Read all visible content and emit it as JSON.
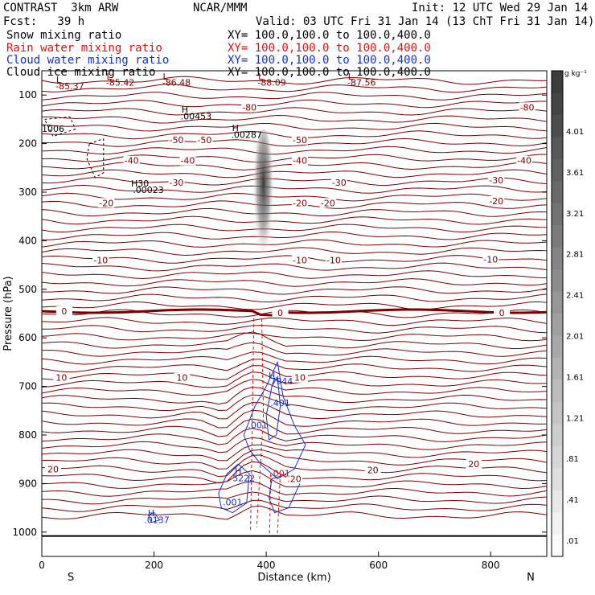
{
  "header": {
    "model": "CONTRAST  3km ARW",
    "center": "NCAR/MMM",
    "init": "Init: 12 UTC Wed 29 Jan 14",
    "fcst": "Fcst:   39 h",
    "valid": "Valid: 03 UTC Fri 31 Jan 14 (13 ChT Fri 31 Jan 14)",
    "fields": [
      {
        "name": "Snow mixing ratio",
        "xy": "XY= 100.0,100.0 to 100.0,400.0",
        "color": "#000000"
      },
      {
        "name": "Rain water mixing ratio",
        "xy": "XY= 100.0,100.0 to 100.0,400.0",
        "color": "#e01010"
      },
      {
        "name": "Cloud water mixing ratio",
        "xy": "XY= 100.0,100.0 to 100.0,400.0",
        "color": "#1030d0"
      },
      {
        "name": "Cloud ice mixing ratio",
        "xy": "XY= 100.0,100.0 to 100.0,400.0",
        "color": "#000000"
      }
    ]
  },
  "chart_data": {
    "type": "cross-section",
    "xlabel": "Distance (km)",
    "ylabel": "Pressure (hPa)",
    "xlim": [
      0,
      900
    ],
    "ylim": [
      1050,
      50
    ],
    "xticks": [
      "0",
      "200",
      "400",
      "600",
      "800"
    ],
    "xtick_values": [
      0,
      200,
      400,
      600,
      800
    ],
    "yticks": [
      "100",
      "200",
      "300",
      "400",
      "500",
      "600",
      "700",
      "800",
      "900",
      "1000"
    ],
    "ytick_values": [
      100,
      200,
      300,
      400,
      500,
      600,
      700,
      800,
      900,
      1000
    ],
    "left_end_label": "S",
    "right_end_label": "N",
    "colorbar": {
      "unit": "g kg⁻¹",
      "labels": [
        "4.01",
        "3.61",
        "3.21",
        "2.81",
        "2.41",
        "2.01",
        "1.61",
        "1.21",
        ".81",
        ".41",
        ".01"
      ],
      "values": [
        4.01,
        3.61,
        3.21,
        2.81,
        2.41,
        2.01,
        1.61,
        1.21,
        0.81,
        0.41,
        0.01
      ]
    },
    "temperature_contours": {
      "color": "#7a0000",
      "levels": [
        -80,
        -70,
        -60,
        -50,
        -40,
        -30,
        -20,
        -10,
        0,
        10,
        20
      ],
      "zero_line_pressure": 545
    },
    "temperature_labels": [
      {
        "text": "-80",
        "x": 370,
        "p": 125
      },
      {
        "text": "-80",
        "x": 865,
        "p": 125
      },
      {
        "text": "-50",
        "x": 240,
        "p": 192
      },
      {
        "text": "-50",
        "x": 290,
        "p": 192
      },
      {
        "text": "-50",
        "x": 460,
        "p": 192
      },
      {
        "text": "-40",
        "x": 160,
        "p": 235
      },
      {
        "text": "-40",
        "x": 260,
        "p": 235
      },
      {
        "text": "-40",
        "x": 460,
        "p": 235
      },
      {
        "text": "-40",
        "x": 860,
        "p": 235
      },
      {
        "text": "-30",
        "x": 240,
        "p": 280
      },
      {
        "text": "-30",
        "x": 530,
        "p": 280
      },
      {
        "text": "-30",
        "x": 810,
        "p": 275
      },
      {
        "text": "-20",
        "x": 115,
        "p": 322
      },
      {
        "text": "-20",
        "x": 460,
        "p": 322
      },
      {
        "text": "-20",
        "x": 510,
        "p": 322
      },
      {
        "text": "-20",
        "x": 810,
        "p": 318
      },
      {
        "text": "-10",
        "x": 105,
        "p": 440
      },
      {
        "text": "-10",
        "x": 460,
        "p": 440
      },
      {
        "text": "-10",
        "x": 520,
        "p": 440
      },
      {
        "text": "-10",
        "x": 800,
        "p": 438
      },
      {
        "text": "0",
        "x": 40,
        "p": 545
      },
      {
        "text": "0",
        "x": 425,
        "p": 548
      },
      {
        "text": "0",
        "x": 820,
        "p": 548
      },
      {
        "text": "10",
        "x": 35,
        "p": 682
      },
      {
        "text": "10",
        "x": 250,
        "p": 682
      },
      {
        "text": "10",
        "x": 460,
        "p": 682
      },
      {
        "text": "20",
        "x": 20,
        "p": 870
      },
      {
        "text": "20",
        "x": 590,
        "p": 872
      },
      {
        "text": "20",
        "x": 770,
        "p": 860
      },
      {
        "text": ".20",
        "x": 450,
        "p": 890
      }
    ],
    "extrema_labels": [
      {
        "text": "L",
        "x": 30,
        "p": 75,
        "color": "#7a0000"
      },
      {
        "text": "-85.37",
        "x": 50,
        "p": 88,
        "color": "#7a0000"
      },
      {
        "text": "L",
        "x": 120,
        "p": 68,
        "color": "#7a0000"
      },
      {
        "text": "-85.42",
        "x": 140,
        "p": 81,
        "color": "#7a0000"
      },
      {
        "text": "L",
        "x": 220,
        "p": 68,
        "color": "#7a0000"
      },
      {
        "text": "-86.48",
        "x": 240,
        "p": 81,
        "color": "#7a0000"
      },
      {
        "text": "L",
        "x": 390,
        "p": 68,
        "color": "#7a0000"
      },
      {
        "text": "-88.09",
        "x": 410,
        "p": 81,
        "color": "#7a0000"
      },
      {
        "text": "L",
        "x": 550,
        "p": 68,
        "color": "#7a0000"
      },
      {
        "text": "-87.56",
        "x": 570,
        "p": 81,
        "color": "#7a0000"
      },
      {
        "text": "H",
        "x": 255,
        "p": 136,
        "color": "#000000"
      },
      {
        "text": ".00453",
        "x": 275,
        "p": 150,
        "color": "#000000"
      },
      {
        "text": "H",
        "x": 345,
        "p": 174,
        "color": "#000000"
      },
      {
        "text": ".00287",
        "x": 365,
        "p": 188,
        "color": "#000000"
      },
      {
        "text": "1006",
        "x": 20,
        "p": 176,
        "color": "#000000"
      },
      {
        "text": "H30",
        "x": 175,
        "p": 288,
        "color": "#000000"
      },
      {
        "text": ".00023",
        "x": 190,
        "p": 302,
        "color": "#000000"
      },
      {
        "text": "H",
        "x": 410,
        "p": 684,
        "color": "#1030d0"
      },
      {
        "text": ".7944",
        "x": 425,
        "p": 696,
        "color": "#1030d0"
      },
      {
        "text": ".401",
        "x": 425,
        "p": 740,
        "color": "#1030d0"
      },
      {
        "text": ".001",
        "x": 385,
        "p": 786,
        "color": "#1030d0"
      },
      {
        "text": "H",
        "x": 350,
        "p": 880,
        "color": "#1030d0"
      },
      {
        "text": "5222",
        "x": 360,
        "p": 895,
        "color": "#1030d0"
      },
      {
        "text": ".001",
        "x": 340,
        "p": 945,
        "color": "#1030d0"
      },
      {
        "text": ".001",
        "x": 425,
        "p": 885,
        "color": "#e01010"
      },
      {
        "text": "H",
        "x": 195,
        "p": 967,
        "color": "#1030d0"
      },
      {
        "text": ".0137",
        "x": 205,
        "p": 981,
        "color": "#1030d0"
      }
    ],
    "snow_plume": {
      "x_center": 395,
      "p_top": 170,
      "p_bottom": 490,
      "max_value": 1.2
    }
  }
}
